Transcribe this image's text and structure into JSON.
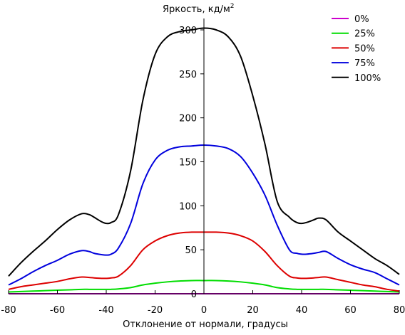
{
  "chart_data": {
    "type": "line",
    "title": "",
    "ylabel_text": "Яркость, кд/м",
    "ylabel_superscript": "2",
    "xlabel": "Отклонение от нормали, градусы",
    "xlim": [
      -80,
      80
    ],
    "ylim": [
      0,
      300
    ],
    "x_ticks": [
      -80,
      -60,
      -40,
      -20,
      0,
      20,
      40,
      60,
      80
    ],
    "y_ticks": [
      0,
      50,
      100,
      150,
      200,
      250,
      300
    ],
    "grid": false,
    "legend_position": "top-right",
    "x": [
      -80,
      -75,
      -70,
      -65,
      -60,
      -55,
      -50,
      -47,
      -45,
      -42,
      -40,
      -38,
      -35,
      -30,
      -25,
      -20,
      -15,
      -10,
      -5,
      0,
      5,
      10,
      15,
      20,
      25,
      30,
      35,
      38,
      40,
      42,
      45,
      47,
      50,
      55,
      60,
      65,
      70,
      75,
      80
    ],
    "series": [
      {
        "name": "0%",
        "color": "#cc00cc",
        "values": [
          0,
          0,
          0,
          0,
          0,
          0,
          0,
          0,
          0,
          0,
          0,
          0,
          0,
          0,
          0,
          0,
          0,
          0,
          0,
          0,
          0,
          0,
          0,
          0,
          0,
          0,
          0,
          0,
          0,
          0,
          0,
          0,
          0,
          0,
          0,
          0,
          0,
          0,
          0
        ]
      },
      {
        "name": "25%",
        "color": "#00dd00",
        "values": [
          2,
          2.5,
          3,
          3.5,
          4,
          4.5,
          5,
          5,
          5,
          5,
          5,
          5,
          5.5,
          7,
          10,
          12,
          13.5,
          14.5,
          15,
          15,
          15,
          14.5,
          13.5,
          12,
          10,
          7,
          5.5,
          5,
          5,
          5,
          5,
          5,
          5,
          4.5,
          4,
          3.5,
          3,
          2.5,
          2
        ]
      },
      {
        "name": "50%",
        "color": "#dd0000",
        "values": [
          5,
          8,
          10,
          12,
          14,
          17,
          19,
          18.5,
          18,
          17.5,
          17.5,
          18,
          20,
          32,
          50,
          60,
          66,
          69,
          70,
          70,
          70,
          69,
          66,
          60,
          48,
          32,
          20,
          18,
          17.5,
          17.5,
          18,
          18.5,
          19,
          16,
          13,
          10,
          8,
          5,
          3
        ]
      },
      {
        "name": "75%",
        "color": "#0000dd",
        "values": [
          10,
          17,
          25,
          32,
          38,
          45,
          49,
          48,
          46,
          44.5,
          44,
          45,
          52,
          80,
          125,
          152,
          163,
          167,
          168,
          169,
          168,
          165,
          156,
          137,
          112,
          78,
          50,
          46,
          45,
          45,
          46,
          47,
          48,
          40,
          33,
          28,
          24,
          17,
          10
        ]
      },
      {
        "name": "100%",
        "color": "#000000",
        "values": [
          20,
          35,
          48,
          60,
          73,
          84,
          91,
          90,
          87,
          82,
          80,
          81,
          90,
          140,
          220,
          272,
          292,
          298,
          300,
          302,
          300,
          292,
          270,
          225,
          170,
          105,
          87,
          81,
          80,
          81,
          84,
          86,
          84,
          70,
          60,
          50,
          40,
          32,
          22
        ]
      }
    ]
  }
}
